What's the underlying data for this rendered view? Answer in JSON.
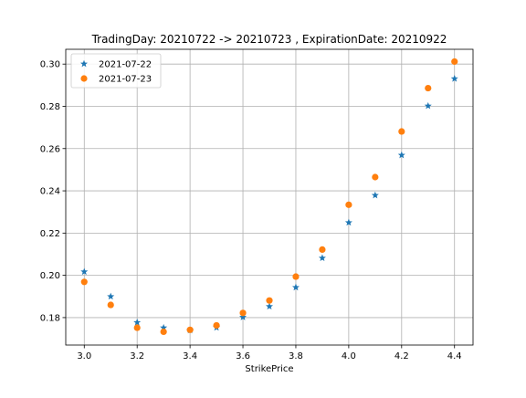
{
  "chart_data": {
    "type": "scatter",
    "title": "TradingDay: 20210722 -> 20210723 , ExpirationDate: 20210922",
    "xlabel": "StrikePrice",
    "ylabel": "",
    "xlim": [
      2.93,
      4.47
    ],
    "ylim": [
      0.167,
      0.307
    ],
    "xticks": [
      3.0,
      3.2,
      3.4,
      3.6,
      3.8,
      4.0,
      4.2,
      4.4
    ],
    "xtick_labels": [
      "3.0",
      "3.2",
      "3.4",
      "3.6",
      "3.8",
      "4.0",
      "4.2",
      "4.4"
    ],
    "yticks": [
      0.18,
      0.2,
      0.22,
      0.24,
      0.26,
      0.28,
      0.3
    ],
    "ytick_labels": [
      "0.18",
      "0.20",
      "0.22",
      "0.24",
      "0.26",
      "0.28",
      "0.30"
    ],
    "grid": true,
    "legend_position": "upper-left",
    "x": [
      3.0,
      3.1,
      3.2,
      3.3,
      3.4,
      3.5,
      3.6,
      3.7,
      3.8,
      3.9,
      4.0,
      4.1,
      4.2,
      4.3,
      4.4
    ],
    "series": [
      {
        "name": "2021-07-22",
        "marker": "star",
        "color": "#1f77b4",
        "values": [
          0.2017,
          0.19,
          0.1777,
          0.1752,
          0.174,
          0.1753,
          0.1802,
          0.1853,
          0.1943,
          0.2082,
          0.225,
          0.2379,
          0.2569,
          0.2802,
          0.2931
        ]
      },
      {
        "name": "2021-07-23",
        "marker": "circle",
        "color": "#ff7f0e",
        "values": [
          0.1969,
          0.186,
          0.1752,
          0.1733,
          0.1742,
          0.1763,
          0.1822,
          0.1881,
          0.1994,
          0.2122,
          0.2334,
          0.2465,
          0.2681,
          0.2886,
          0.3012
        ]
      }
    ]
  }
}
